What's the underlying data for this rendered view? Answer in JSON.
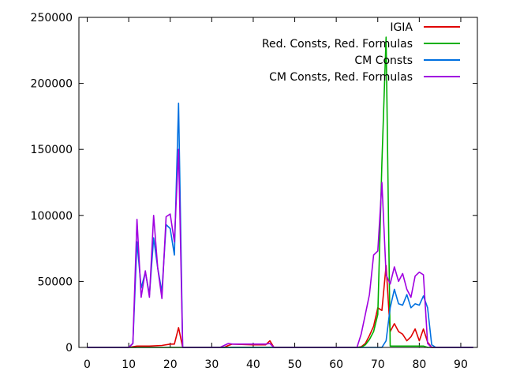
{
  "chart_data": {
    "type": "line",
    "xlim": [
      -2,
      94
    ],
    "ylim": [
      0,
      250000
    ],
    "xticks": [
      0,
      10,
      20,
      30,
      40,
      50,
      60,
      70,
      80,
      90
    ],
    "yticks": [
      0,
      50000,
      100000,
      150000,
      200000,
      250000
    ],
    "xtick_labels": [
      "0",
      "10",
      "20",
      "30",
      "40",
      "50",
      "60",
      "70",
      "80",
      "90"
    ],
    "ytick_labels": [
      "0",
      "50000",
      "100000",
      "150000",
      "200000",
      "250000"
    ],
    "grid": false,
    "legend_position": "top-right",
    "series": [
      {
        "name": "IGIA",
        "color": "#e00000",
        "points": [
          [
            0,
            0
          ],
          [
            10,
            0
          ],
          [
            11,
            500
          ],
          [
            12,
            1000
          ],
          [
            15,
            1000
          ],
          [
            18,
            1500
          ],
          [
            20,
            2500
          ],
          [
            21,
            2500
          ],
          [
            22,
            15000
          ],
          [
            23,
            0
          ],
          [
            33,
            0
          ],
          [
            34,
            1500
          ],
          [
            35,
            2500
          ],
          [
            40,
            2000
          ],
          [
            43,
            2000
          ],
          [
            44,
            5000
          ],
          [
            45,
            0
          ],
          [
            65,
            0
          ],
          [
            66,
            500
          ],
          [
            67,
            3000
          ],
          [
            68,
            9000
          ],
          [
            69,
            16000
          ],
          [
            70,
            30000
          ],
          [
            71,
            28000
          ],
          [
            72,
            62000
          ],
          [
            73,
            12000
          ],
          [
            74,
            18000
          ],
          [
            75,
            12000
          ],
          [
            76,
            10000
          ],
          [
            77,
            5000
          ],
          [
            78,
            8000
          ],
          [
            79,
            14000
          ],
          [
            80,
            5000
          ],
          [
            81,
            14000
          ],
          [
            82,
            4000
          ],
          [
            83,
            0
          ],
          [
            93,
            0
          ]
        ]
      },
      {
        "name": "Red. Consts, Red. Formulas",
        "color": "#00b000",
        "points": [
          [
            0,
            0
          ],
          [
            66,
            0
          ],
          [
            67,
            2000
          ],
          [
            68,
            6000
          ],
          [
            69,
            12000
          ],
          [
            70,
            25000
          ],
          [
            71,
            140000
          ],
          [
            72,
            235000
          ],
          [
            73,
            1000
          ],
          [
            80,
            1000
          ],
          [
            81,
            1000
          ],
          [
            82,
            0
          ],
          [
            93,
            0
          ]
        ]
      },
      {
        "name": "CM Consts",
        "color": "#0070e0",
        "points": [
          [
            0,
            0
          ],
          [
            10,
            0
          ],
          [
            11,
            3000
          ],
          [
            12,
            80000
          ],
          [
            13,
            45000
          ],
          [
            14,
            57000
          ],
          [
            15,
            40000
          ],
          [
            16,
            83000
          ],
          [
            17,
            60000
          ],
          [
            18,
            42000
          ],
          [
            19,
            93000
          ],
          [
            20,
            90000
          ],
          [
            21,
            70000
          ],
          [
            22,
            185000
          ],
          [
            23,
            0
          ],
          [
            71,
            0
          ],
          [
            72,
            5000
          ],
          [
            73,
            30000
          ],
          [
            74,
            44000
          ],
          [
            75,
            33000
          ],
          [
            76,
            32000
          ],
          [
            77,
            40000
          ],
          [
            78,
            30000
          ],
          [
            79,
            33000
          ],
          [
            80,
            32000
          ],
          [
            81,
            39000
          ],
          [
            82,
            30000
          ],
          [
            83,
            2000
          ],
          [
            84,
            0
          ],
          [
            93,
            0
          ]
        ]
      },
      {
        "name": "CM Consts, Red. Formulas",
        "color": "#a000e0",
        "points": [
          [
            0,
            0
          ],
          [
            10,
            0
          ],
          [
            11,
            3000
          ],
          [
            12,
            97000
          ],
          [
            13,
            38000
          ],
          [
            14,
            58000
          ],
          [
            15,
            38000
          ],
          [
            16,
            100000
          ],
          [
            17,
            60000
          ],
          [
            18,
            37000
          ],
          [
            19,
            99000
          ],
          [
            20,
            101000
          ],
          [
            21,
            80000
          ],
          [
            22,
            150000
          ],
          [
            23,
            0
          ],
          [
            32,
            0
          ],
          [
            33,
            1500
          ],
          [
            34,
            3000
          ],
          [
            35,
            2500
          ],
          [
            40,
            2500
          ],
          [
            43,
            2500
          ],
          [
            44,
            3000
          ],
          [
            45,
            0
          ],
          [
            65,
            0
          ],
          [
            66,
            10000
          ],
          [
            67,
            25000
          ],
          [
            68,
            40000
          ],
          [
            69,
            70000
          ],
          [
            70,
            73000
          ],
          [
            71,
            125000
          ],
          [
            72,
            55000
          ],
          [
            73,
            48000
          ],
          [
            74,
            61000
          ],
          [
            75,
            50000
          ],
          [
            76,
            56000
          ],
          [
            77,
            44000
          ],
          [
            78,
            38000
          ],
          [
            79,
            54000
          ],
          [
            80,
            57000
          ],
          [
            81,
            55000
          ],
          [
            82,
            3000
          ],
          [
            83,
            0
          ],
          [
            93,
            0
          ]
        ]
      }
    ]
  }
}
